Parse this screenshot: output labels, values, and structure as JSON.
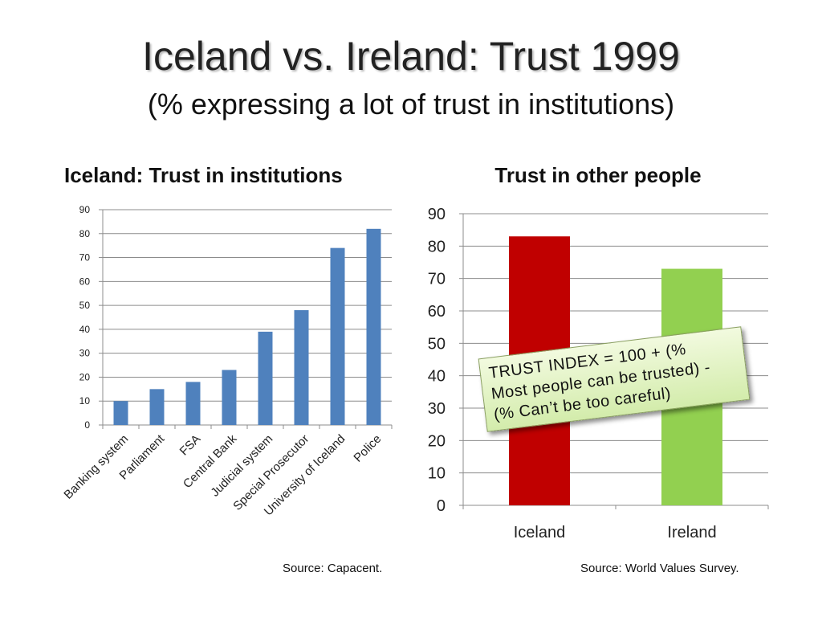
{
  "title": "Iceland vs. Ireland: Trust 1999",
  "subtitle": "(% expressing a lot of trust in institutions)",
  "sources": {
    "left": "Source: Capacent.",
    "right": "Source: World Values Survey."
  },
  "callout": {
    "lines": [
      "TRUST INDEX = 100 + (%",
      "Most people can be trusted) -",
      "(% Can’t be too careful)"
    ],
    "color": "#d3ecab"
  },
  "chart_data": [
    {
      "type": "bar",
      "title": "Iceland: Trust in institutions",
      "categories": [
        "Banking system",
        "Parliament",
        "FSA",
        "Central Bank",
        "Judicial system",
        "Special Prosecutor",
        "University of Iceland",
        "Police"
      ],
      "values": [
        10,
        15,
        18,
        23,
        39,
        48,
        74,
        82
      ],
      "ylim": [
        0,
        90
      ],
      "yticks": [
        0,
        10,
        20,
        30,
        40,
        50,
        60,
        70,
        80,
        90
      ],
      "grid": true,
      "bar_color": "#4f81bd"
    },
    {
      "type": "bar",
      "title": "Trust in other people",
      "categories": [
        "Iceland",
        "Ireland"
      ],
      "values": [
        83,
        73
      ],
      "colors": [
        "#c00000",
        "#92d050"
      ],
      "ylim": [
        0,
        90
      ],
      "yticks": [
        0,
        10,
        20,
        30,
        40,
        50,
        60,
        70,
        80,
        90
      ],
      "grid": true
    }
  ]
}
